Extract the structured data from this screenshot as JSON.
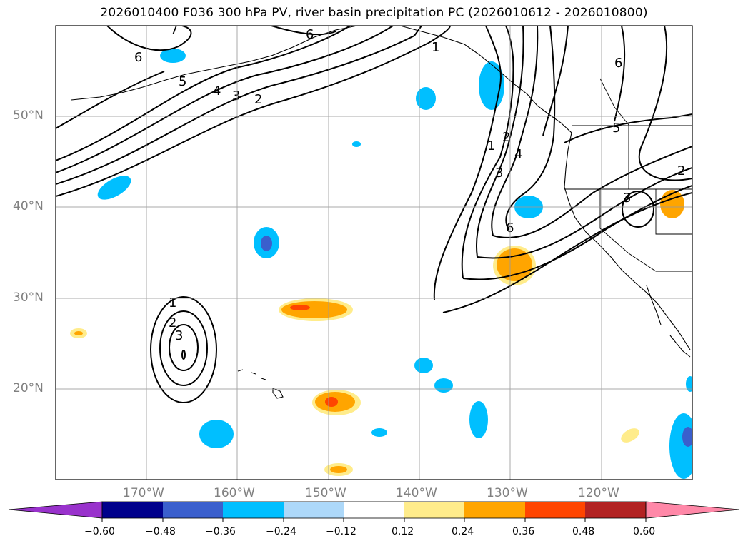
{
  "title": "2026010400 F036 300 hPa PV, river basin precipitation PC (2026010612 - 2026010800)",
  "map": {
    "lon_range": [
      -180,
      -110
    ],
    "lat_range": [
      10,
      60
    ],
    "lat_labels": [
      "50°N",
      "40°N",
      "30°N",
      "20°N"
    ],
    "lon_labels": [
      "170°W",
      "160°W",
      "150°W",
      "140°W",
      "130°W",
      "120°W"
    ],
    "contour_labels": [
      "7",
      "6",
      "6",
      "5",
      "4",
      "3",
      "2",
      "1",
      "1",
      "2",
      "3",
      "4",
      "6",
      "6",
      "5",
      "3",
      "2",
      "1",
      "2",
      "3"
    ],
    "grid_color": "#9a9a9a",
    "contour_color": "#000000"
  },
  "colorbar": {
    "tick_labels": [
      "−0.60",
      "−0.48",
      "−0.36",
      "−0.24",
      "−0.12",
      "0.12",
      "0.24",
      "0.36",
      "0.48",
      "0.60"
    ],
    "colors": [
      "#9932cc",
      "#00008b",
      "#3a5fcd",
      "#00bfff",
      "#add8f9",
      "#ffffff",
      "#ffec8b",
      "#ffa500",
      "#ff4500",
      "#b22222",
      "#ff88a8"
    ]
  }
}
